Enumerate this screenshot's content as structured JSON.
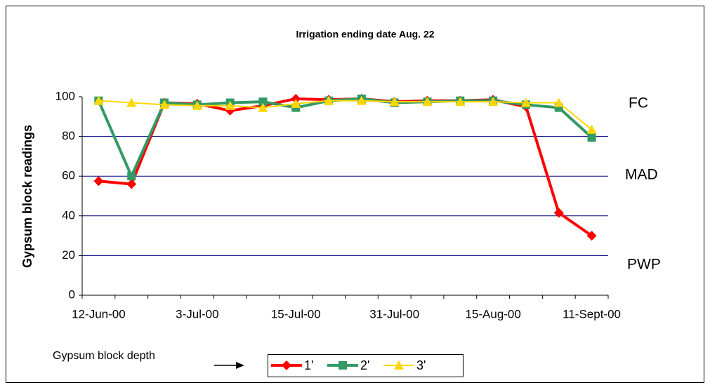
{
  "chart_data": {
    "type": "line",
    "title": "Irrigation ending date Aug. 22",
    "y_label": "Gypsum block readings",
    "annotations": [
      "FC",
      "MAD",
      "PWP"
    ],
    "legend_title": "Gypsum block depth",
    "categories": [
      "12-Jun-00",
      null,
      null,
      "3-Jul-00",
      null,
      null,
      "15-Jul-00",
      null,
      null,
      "31-Jul-00",
      null,
      null,
      "15-Aug-00",
      null,
      null,
      "11-Sept-00"
    ],
    "series": [
      {
        "name": "1'",
        "color": "#ff0000",
        "marker": "diamond",
        "values": [
          57.5,
          56,
          97,
          96.5,
          93,
          95.5,
          99,
          98.5,
          99,
          97.5,
          98,
          98,
          98.5,
          95,
          41.5,
          30
        ]
      },
      {
        "name": "2'",
        "color": "#339966",
        "marker": "square",
        "values": [
          98,
          60,
          97,
          96,
          97,
          97.5,
          94.5,
          98,
          99,
          97,
          97.5,
          98,
          98,
          96,
          94.5,
          79.5
        ]
      },
      {
        "name": "3'",
        "color": "#ffd700",
        "marker": "triangle",
        "values": [
          98,
          97,
          96,
          95.5,
          95.5,
          94.5,
          96.5,
          98,
          98,
          97.5,
          97.5,
          97.5,
          97.5,
          97,
          97,
          83.5
        ]
      }
    ],
    "ylim": [
      0,
      100
    ],
    "yticks": [
      0,
      20,
      40,
      60,
      80,
      100
    ],
    "grid": true,
    "grid_color": "#000080"
  }
}
